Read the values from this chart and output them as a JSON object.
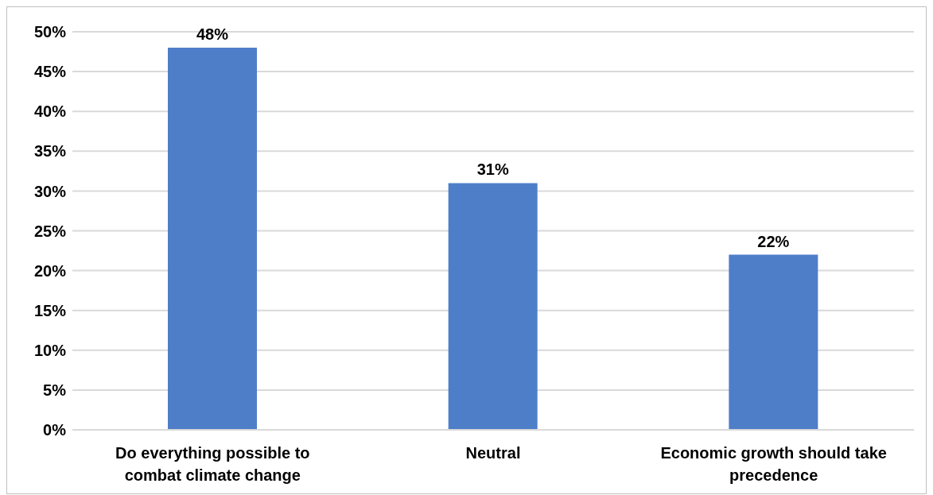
{
  "chart_data": {
    "type": "bar",
    "categories": [
      "Do everything possible to combat climate change",
      "Neutral",
      "Economic growth should take precedence"
    ],
    "values": [
      48,
      31,
      22
    ],
    "value_labels": [
      "48%",
      "31%",
      "22%"
    ],
    "color": "#4f7ec9",
    "ylim": [
      0,
      50
    ],
    "yticks": [
      {
        "value": 0,
        "label": "0%"
      },
      {
        "value": 5,
        "label": "5%"
      },
      {
        "value": 10,
        "label": "10%"
      },
      {
        "value": 15,
        "label": "15%"
      },
      {
        "value": 20,
        "label": "20%"
      },
      {
        "value": 25,
        "label": "25%"
      },
      {
        "value": 30,
        "label": "30%"
      },
      {
        "value": 35,
        "label": "35%"
      },
      {
        "value": 40,
        "label": "40%"
      },
      {
        "value": 45,
        "label": "45%"
      },
      {
        "value": 50,
        "label": "50%"
      }
    ],
    "grid": "y"
  }
}
